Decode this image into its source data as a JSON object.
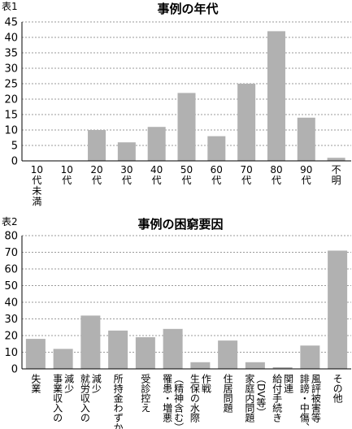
{
  "chart_data": [
    {
      "type": "bar",
      "label": "表1",
      "title": "事例の年代",
      "categories": [
        "10代未満",
        "10代",
        "20代",
        "30代",
        "40代",
        "50代",
        "60代",
        "70代",
        "80代",
        "90代",
        "不明"
      ],
      "values": [
        0,
        0,
        10,
        6,
        11,
        22,
        8,
        25,
        42,
        14,
        1
      ],
      "ylim": [
        0,
        45
      ],
      "yticks": [
        0,
        5,
        10,
        15,
        20,
        25,
        30,
        35,
        40,
        45
      ],
      "xlabel": "",
      "ylabel": "",
      "grid": true,
      "bar_color": "#b1b1b1",
      "tick_label_lines": [
        [
          "10",
          "代",
          "未",
          "満"
        ],
        [
          "10",
          "代"
        ],
        [
          "20",
          "代"
        ],
        [
          "30",
          "代"
        ],
        [
          "40",
          "代"
        ],
        [
          "50",
          "代"
        ],
        [
          "60",
          "代"
        ],
        [
          "70",
          "代"
        ],
        [
          "80",
          "代"
        ],
        [
          "90",
          "代"
        ],
        [
          "不",
          "明"
        ]
      ]
    },
    {
      "type": "bar",
      "label": "表2",
      "title": "事例の困窮要因",
      "categories": [
        "失業",
        "事業収入の減少",
        "就労収入の減少",
        "所持金わずか",
        "受診控え",
        "罹患・増悪（精神含む）",
        "生保の水際作戦",
        "住居問題",
        "家庭内問題（DV等）",
        "給付手続き関連",
        "誹謗・中傷、風評被害等",
        "その他"
      ],
      "values": [
        18,
        12,
        32,
        23,
        19,
        24,
        4,
        17,
        4,
        1,
        14,
        71
      ],
      "ylim": [
        0,
        80
      ],
      "yticks": [
        0,
        10,
        20,
        30,
        40,
        50,
        60,
        70,
        80
      ],
      "xlabel": "",
      "ylabel": "",
      "grid": true,
      "bar_color": "#b1b1b1",
      "tick_label_lines": [
        [
          "失業"
        ],
        [
          "事業収入の",
          "減少"
        ],
        [
          "就労収入の",
          "減少"
        ],
        [
          "所持金わずか"
        ],
        [
          "受診控え"
        ],
        [
          "罹患・増悪",
          "（精神含む）"
        ],
        [
          "生保の水際",
          "作戦"
        ],
        [
          "住居問題"
        ],
        [
          "家庭内問題",
          "（DV等）"
        ],
        [
          "給付手続き",
          "関連"
        ],
        [
          "誹謗・中傷、",
          "風評被害等"
        ],
        [
          "その他"
        ]
      ]
    }
  ]
}
